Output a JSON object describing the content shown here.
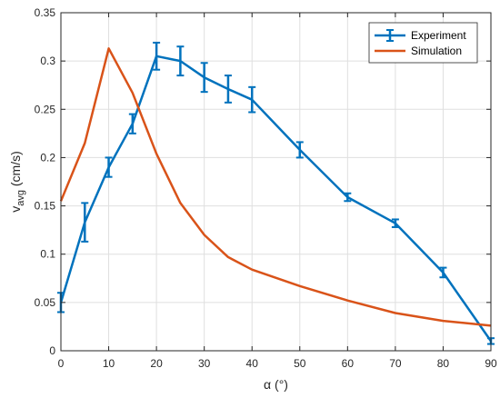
{
  "chart_data": {
    "type": "line",
    "title": "",
    "xlabel": "α (°)",
    "ylabel_main": "v",
    "ylabel_sub": "avg",
    "ylabel_unit": " (cm/s)",
    "xlim": [
      0,
      90
    ],
    "ylim": [
      0,
      0.35
    ],
    "xticks": [
      0,
      10,
      20,
      30,
      40,
      50,
      60,
      70,
      80,
      90
    ],
    "yticks": [
      0,
      0.05,
      0.1,
      0.15,
      0.2,
      0.25,
      0.3,
      0.35
    ],
    "ytick_labels": [
      "0",
      "0.05",
      "0.1",
      "0.15",
      "0.2",
      "0.25",
      "0.3",
      "0.35"
    ],
    "grid": true,
    "legend_position": "top-right",
    "series": [
      {
        "name": "Experiment",
        "color": "#0072BD",
        "x": [
          0,
          5,
          10,
          15,
          20,
          25,
          30,
          35,
          40,
          50,
          60,
          70,
          80,
          90
        ],
        "y": [
          0.05,
          0.133,
          0.19,
          0.235,
          0.305,
          0.3,
          0.283,
          0.271,
          0.26,
          0.208,
          0.159,
          0.132,
          0.081,
          0.01
        ],
        "err": [
          0.01,
          0.02,
          0.01,
          0.01,
          0.014,
          0.015,
          0.015,
          0.014,
          0.013,
          0.008,
          0.004,
          0.004,
          0.005,
          0.003
        ]
      },
      {
        "name": "Simulation",
        "color": "#D95319",
        "x": [
          0,
          5,
          10,
          15,
          20,
          25,
          30,
          35,
          40,
          50,
          60,
          70,
          80,
          90
        ],
        "y": [
          0.155,
          0.215,
          0.313,
          0.267,
          0.204,
          0.153,
          0.12,
          0.097,
          0.084,
          0.067,
          0.052,
          0.039,
          0.031,
          0.026
        ]
      }
    ]
  }
}
